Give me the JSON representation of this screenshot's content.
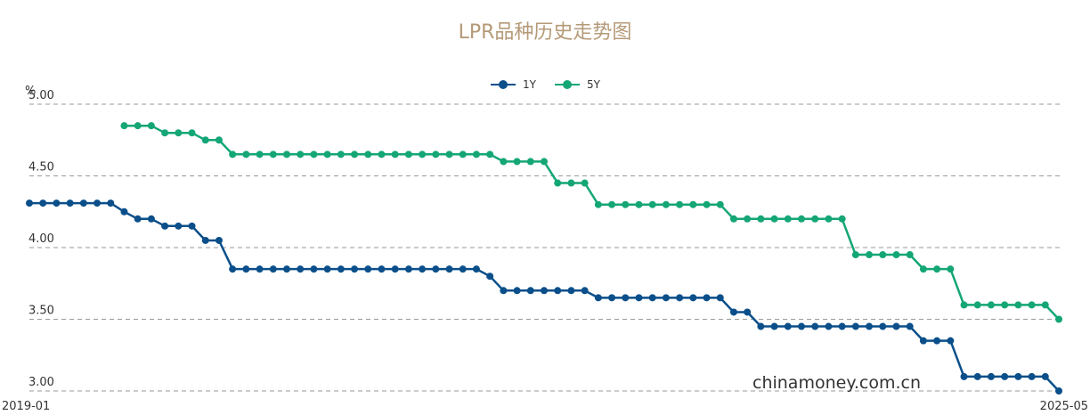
{
  "chart_data": {
    "type": "line",
    "title": "LPR品种历史走势图",
    "ylabel": "%",
    "ylim": [
      3.0,
      5.0
    ],
    "yticks": [
      "5.00",
      "4.50",
      "4.00",
      "3.50",
      "3.00"
    ],
    "x_start_label": "2019-01",
    "x_end_label": "2025-05",
    "grid": true,
    "legend_position": "top-center",
    "series": [
      {
        "name": "1Y",
        "color": "#0b4f8a",
        "values": [
          4.31,
          4.31,
          4.31,
          4.31,
          4.31,
          4.31,
          4.31,
          4.25,
          4.2,
          4.2,
          4.15,
          4.15,
          4.15,
          4.05,
          4.05,
          3.85,
          3.85,
          3.85,
          3.85,
          3.85,
          3.85,
          3.85,
          3.85,
          3.85,
          3.85,
          3.85,
          3.85,
          3.85,
          3.85,
          3.85,
          3.85,
          3.85,
          3.85,
          3.85,
          3.8,
          3.7,
          3.7,
          3.7,
          3.7,
          3.7,
          3.7,
          3.7,
          3.65,
          3.65,
          3.65,
          3.65,
          3.65,
          3.65,
          3.65,
          3.65,
          3.65,
          3.65,
          3.55,
          3.55,
          3.45,
          3.45,
          3.45,
          3.45,
          3.45,
          3.45,
          3.45,
          3.45,
          3.45,
          3.45,
          3.45,
          3.45,
          3.35,
          3.35,
          3.35,
          3.1,
          3.1,
          3.1,
          3.1,
          3.1,
          3.1,
          3.1,
          3.0
        ]
      },
      {
        "name": "5Y",
        "color": "#14a676",
        "values": [
          null,
          null,
          null,
          null,
          null,
          null,
          null,
          4.85,
          4.85,
          4.85,
          4.8,
          4.8,
          4.8,
          4.75,
          4.75,
          4.65,
          4.65,
          4.65,
          4.65,
          4.65,
          4.65,
          4.65,
          4.65,
          4.65,
          4.65,
          4.65,
          4.65,
          4.65,
          4.65,
          4.65,
          4.65,
          4.65,
          4.65,
          4.65,
          4.65,
          4.6,
          4.6,
          4.6,
          4.6,
          4.45,
          4.45,
          4.45,
          4.3,
          4.3,
          4.3,
          4.3,
          4.3,
          4.3,
          4.3,
          4.3,
          4.3,
          4.3,
          4.2,
          4.2,
          4.2,
          4.2,
          4.2,
          4.2,
          4.2,
          4.2,
          4.2,
          3.95,
          3.95,
          3.95,
          3.95,
          3.95,
          3.85,
          3.85,
          3.85,
          3.6,
          3.6,
          3.6,
          3.6,
          3.6,
          3.6,
          3.6,
          3.5
        ]
      }
    ]
  },
  "watermark": "chinamoney.com.cn"
}
